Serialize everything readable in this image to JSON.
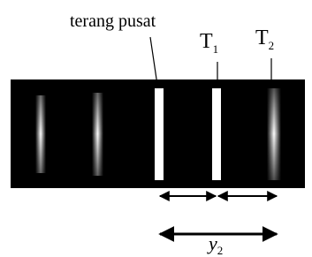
{
  "labels": {
    "central_bright": "terang pusat",
    "t1": "T",
    "t1_sub": "1",
    "t2": "T",
    "t2_sub": "2",
    "y2": "y",
    "y2_sub": "2"
  }
}
